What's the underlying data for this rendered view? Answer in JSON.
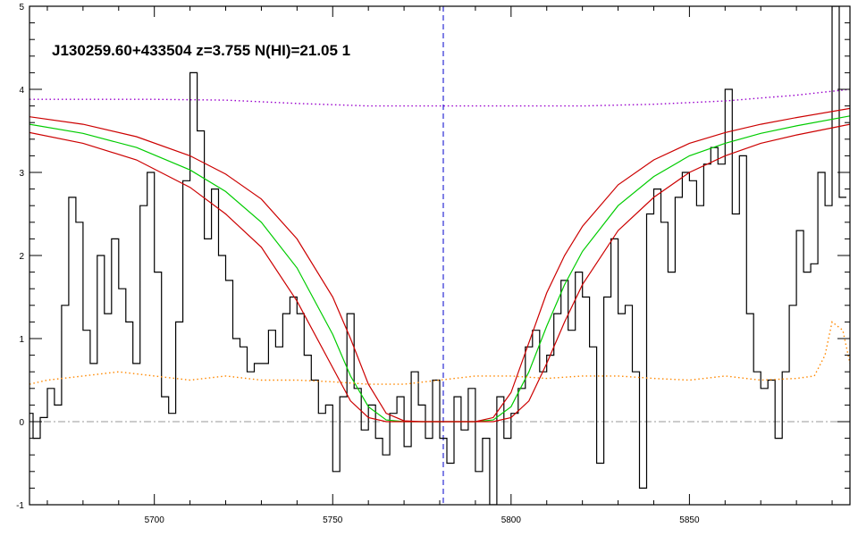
{
  "chart_data": {
    "type": "line",
    "title": "J130259.60+433504 z=3.755 N(HI)=21.05 1",
    "xlabel": "",
    "ylabel": "",
    "xlim": [
      5665,
      5895
    ],
    "ylim": [
      -1,
      5
    ],
    "x_ticks": [
      5700,
      5750,
      5800,
      5850
    ],
    "y_ticks": [
      -1,
      0,
      1,
      2,
      3,
      4,
      5
    ],
    "grid": false,
    "line_center": 5781,
    "zero_level": 0,
    "series": [
      {
        "role": "flux",
        "style": "histogram",
        "color": "#000000",
        "x": [
          5665,
          5667,
          5669,
          5671,
          5673,
          5675,
          5677,
          5679,
          5681,
          5683,
          5685,
          5687,
          5689,
          5691,
          5693,
          5695,
          5697,
          5699,
          5701,
          5703,
          5705,
          5707,
          5709,
          5711,
          5713,
          5715,
          5717,
          5719,
          5721,
          5723,
          5725,
          5727,
          5729,
          5731,
          5733,
          5735,
          5737,
          5739,
          5741,
          5743,
          5745,
          5747,
          5749,
          5751,
          5753,
          5755,
          5757,
          5759,
          5761,
          5763,
          5765,
          5767,
          5769,
          5771,
          5773,
          5775,
          5777,
          5779,
          5781,
          5783,
          5785,
          5787,
          5789,
          5791,
          5793,
          5795,
          5797,
          5799,
          5801,
          5803,
          5805,
          5807,
          5809,
          5811,
          5813,
          5815,
          5817,
          5819,
          5821,
          5823,
          5825,
          5827,
          5829,
          5831,
          5833,
          5835,
          5837,
          5839,
          5841,
          5843,
          5845,
          5847,
          5849,
          5851,
          5853,
          5855,
          5857,
          5859,
          5861,
          5863,
          5865,
          5867,
          5869,
          5871,
          5873,
          5875,
          5877,
          5879,
          5881,
          5883,
          5885,
          5887,
          5889,
          5891,
          5893
        ],
        "y": [
          0.1,
          -0.2,
          0.05,
          0.4,
          0.2,
          1.4,
          2.7,
          2.4,
          1.1,
          0.7,
          2.0,
          1.3,
          2.2,
          1.6,
          1.2,
          0.7,
          2.6,
          3.0,
          1.8,
          0.3,
          0.1,
          1.2,
          2.9,
          4.2,
          3.5,
          2.2,
          2.8,
          2.0,
          1.7,
          1.0,
          0.9,
          0.6,
          0.7,
          0.7,
          1.1,
          0.9,
          1.3,
          1.5,
          1.3,
          0.8,
          0.5,
          0.1,
          0.2,
          -0.6,
          0.3,
          1.3,
          0.4,
          -0.1,
          0.2,
          -0.2,
          -0.4,
          0.1,
          0.3,
          -0.3,
          0.6,
          0.2,
          -0.2,
          0.5,
          -0.2,
          -0.5,
          0.3,
          -0.1,
          0.4,
          -0.6,
          -0.2,
          -1.0,
          0.3,
          -0.2,
          0.1,
          0.4,
          0.9,
          1.1,
          0.6,
          0.8,
          1.3,
          1.7,
          1.1,
          1.8,
          1.5,
          0.9,
          -0.5,
          1.5,
          2.2,
          1.3,
          1.4,
          0.6,
          -0.8,
          2.5,
          2.8,
          2.4,
          1.8,
          2.7,
          3.0,
          2.9,
          2.6,
          3.1,
          3.3,
          3.1,
          4.0,
          2.5,
          3.2,
          1.3,
          0.6,
          0.4,
          0.5,
          -0.2,
          0.6,
          1.4,
          2.3,
          1.8,
          1.9,
          3.0,
          2.6,
          5.0,
          2.7
        ]
      },
      {
        "role": "model",
        "color": "#00cc00",
        "x": [
          5665,
          5680,
          5695,
          5710,
          5720,
          5730,
          5740,
          5750,
          5755,
          5760,
          5765,
          5770,
          5775,
          5780,
          5785,
          5790,
          5795,
          5800,
          5805,
          5810,
          5815,
          5820,
          5830,
          5840,
          5850,
          5860,
          5870,
          5880,
          5895
        ],
        "y": [
          3.58,
          3.47,
          3.3,
          3.03,
          2.77,
          2.4,
          1.85,
          1.05,
          0.55,
          0.18,
          0.02,
          0.0,
          0.0,
          0.0,
          0.0,
          0.0,
          0.02,
          0.18,
          0.6,
          1.15,
          1.65,
          2.05,
          2.6,
          2.95,
          3.2,
          3.35,
          3.47,
          3.56,
          3.68
        ]
      },
      {
        "role": "model-upper",
        "color": "#cc0000",
        "x": [
          5665,
          5680,
          5695,
          5710,
          5720,
          5730,
          5740,
          5750,
          5755,
          5760,
          5765,
          5770,
          5775,
          5780,
          5785,
          5790,
          5795,
          5800,
          5805,
          5810,
          5815,
          5820,
          5830,
          5840,
          5850,
          5860,
          5870,
          5880,
          5895
        ],
        "y": [
          3.67,
          3.58,
          3.43,
          3.2,
          2.98,
          2.68,
          2.2,
          1.5,
          1.0,
          0.45,
          0.1,
          0.01,
          0.0,
          0.0,
          0.0,
          0.0,
          0.05,
          0.35,
          0.95,
          1.55,
          2.0,
          2.35,
          2.85,
          3.15,
          3.35,
          3.48,
          3.58,
          3.66,
          3.77
        ]
      },
      {
        "role": "model-lower",
        "color": "#cc0000",
        "x": [
          5665,
          5680,
          5695,
          5710,
          5720,
          5730,
          5740,
          5750,
          5755,
          5760,
          5765,
          5770,
          5775,
          5780,
          5785,
          5790,
          5795,
          5800,
          5805,
          5810,
          5815,
          5820,
          5830,
          5840,
          5850,
          5860,
          5870,
          5880,
          5895
        ],
        "y": [
          3.48,
          3.35,
          3.15,
          2.82,
          2.5,
          2.1,
          1.45,
          0.65,
          0.25,
          0.05,
          0.0,
          0.0,
          0.0,
          0.0,
          0.0,
          0.0,
          0.0,
          0.05,
          0.25,
          0.7,
          1.2,
          1.65,
          2.3,
          2.7,
          3.0,
          3.2,
          3.35,
          3.45,
          3.58
        ]
      },
      {
        "role": "continuum",
        "style": "dotted",
        "color": "#9900cc",
        "x": [
          5665,
          5700,
          5720,
          5740,
          5760,
          5780,
          5800,
          5820,
          5840,
          5860,
          5880,
          5895
        ],
        "y": [
          3.88,
          3.88,
          3.87,
          3.83,
          3.8,
          3.8,
          3.8,
          3.8,
          3.82,
          3.86,
          3.93,
          4.0
        ]
      },
      {
        "role": "error",
        "style": "dotted",
        "color": "#ff8800",
        "x": [
          5665,
          5670,
          5680,
          5690,
          5700,
          5710,
          5720,
          5730,
          5740,
          5750,
          5760,
          5770,
          5780,
          5790,
          5800,
          5810,
          5820,
          5830,
          5840,
          5850,
          5860,
          5870,
          5880,
          5885,
          5888,
          5890,
          5893,
          5895
        ],
        "y": [
          0.45,
          0.5,
          0.55,
          0.6,
          0.55,
          0.5,
          0.55,
          0.5,
          0.5,
          0.48,
          0.45,
          0.45,
          0.5,
          0.55,
          0.55,
          0.52,
          0.55,
          0.55,
          0.52,
          0.5,
          0.55,
          0.5,
          0.52,
          0.55,
          0.8,
          1.2,
          1.1,
          0.7
        ]
      }
    ]
  }
}
